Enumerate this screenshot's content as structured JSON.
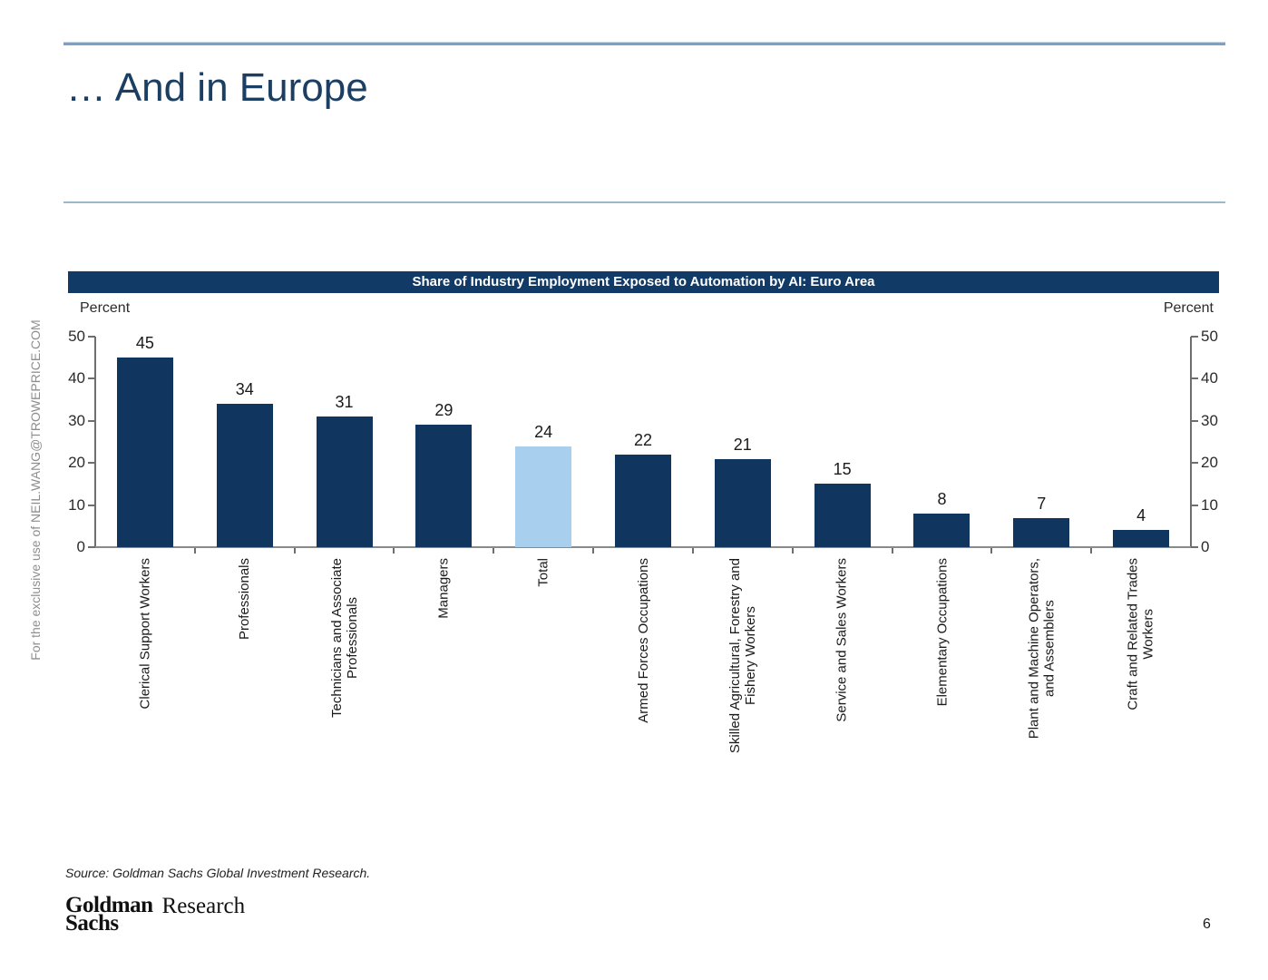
{
  "slide": {
    "title": "… And in Europe",
    "watermark": "For the exclusive use of NEIL.WANG@TROWEPRICE.COM",
    "source_note": "Source: Goldman Sachs Global Investment Research.",
    "logo": {
      "line1": "Goldman",
      "line2": "Sachs",
      "suffix": "Research"
    },
    "page_number": "6"
  },
  "chart_data": {
    "type": "bar",
    "title": "Share of Industry Employment Exposed to Automation by AI: Euro Area",
    "left_axis_label": "Percent",
    "right_axis_label": "Percent",
    "categories": [
      "Clerical Support Workers",
      "Professionals",
      "Technicians and Associate\nProfessionals",
      "Managers",
      "Total",
      "Armed Forces Occupations",
      "Skilled Agricultural, Forestry and\nFishery Workers",
      "Service and Sales Workers",
      "Elementary Occupations",
      "Plant and Machine Operators,\nand Assemblers",
      "Craft and Related Trades\nWorkers"
    ],
    "values": [
      45,
      34,
      31,
      29,
      24,
      22,
      21,
      15,
      8,
      7,
      4
    ],
    "highlight_index": 4,
    "highlight_category": "Total",
    "ylim": [
      0,
      50
    ],
    "yticks": [
      0,
      10,
      20,
      30,
      40,
      50
    ],
    "grid": false,
    "legend": "none",
    "colors": {
      "bar": "#10365f",
      "highlight_bar": "#a9cfee",
      "header_bg": "#123a66",
      "header_text": "#ffffff"
    }
  }
}
